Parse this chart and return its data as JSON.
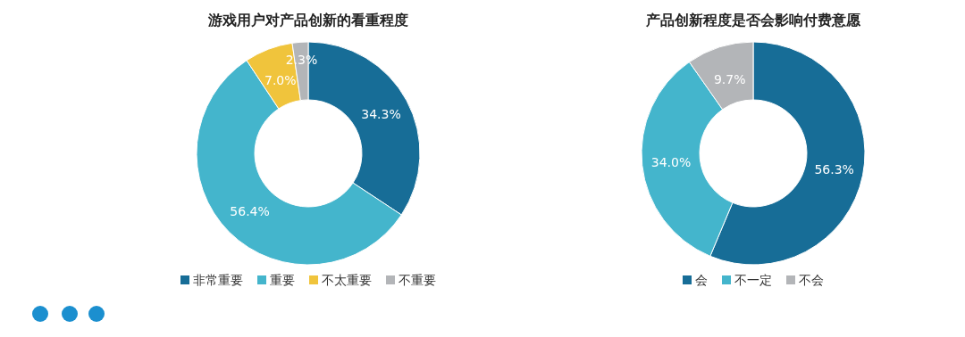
{
  "chart_data": [
    {
      "type": "donut",
      "title": "游戏用户对产品创新的看重程度",
      "categories": [
        "非常重要",
        "重要",
        "不太重要",
        "不重要"
      ],
      "values": [
        34.3,
        56.4,
        7.0,
        2.3
      ],
      "value_labels": [
        "34.3%",
        "56.4%",
        "7.0%",
        "2.3%"
      ],
      "colors": [
        "#176d97",
        "#44b5cc",
        "#f0c43c",
        "#b3b5b8"
      ],
      "legend": "bottom"
    },
    {
      "type": "donut",
      "title": "产品创新程度是否会影响付费意愿",
      "categories": [
        "会",
        "不一定",
        "不会"
      ],
      "values": [
        56.3,
        34.0,
        9.7
      ],
      "value_labels": [
        "56.3%",
        "34.0%",
        "9.7%"
      ],
      "colors": [
        "#176d97",
        "#44b5cc",
        "#b3b5b8"
      ],
      "legend": "bottom"
    }
  ]
}
